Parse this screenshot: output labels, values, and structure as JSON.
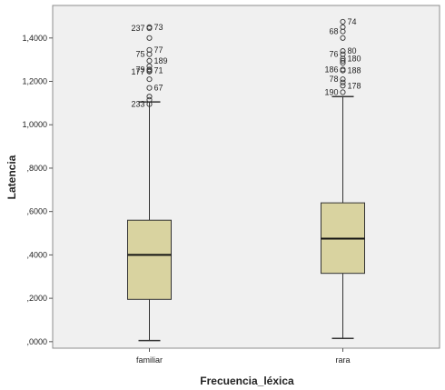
{
  "chart_data": {
    "type": "boxplot",
    "xlabel": "Frecuencia_léxica",
    "ylabel": "Latencia",
    "ylim": [
      -0.03,
      1.55
    ],
    "y_ticks": [
      {
        "value": 0.0,
        "label": ",0000"
      },
      {
        "value": 0.2,
        "label": ",2000"
      },
      {
        "value": 0.4,
        "label": ",4000"
      },
      {
        "value": 0.6,
        "label": ",6000"
      },
      {
        "value": 0.8,
        "label": ",8000"
      },
      {
        "value": 1.0,
        "label": "1,0000"
      },
      {
        "value": 1.2,
        "label": "1,2000"
      },
      {
        "value": 1.4,
        "label": "1,4000"
      }
    ],
    "grid": false,
    "colors": {
      "plot_background": "#f0f0f0",
      "box_fill": "#d9d3a0",
      "box_stroke": "#333333",
      "frame": "#8c8c8c"
    },
    "categories": [
      "familiar",
      "rara"
    ],
    "boxes": [
      {
        "category": "familiar",
        "whisker_low": 0.005,
        "q1": 0.195,
        "median": 0.4,
        "q3": 0.56,
        "whisker_high": 1.105,
        "outliers": [
          {
            "value": 1.45,
            "label": "73"
          },
          {
            "value": 1.445,
            "label": "237"
          },
          {
            "value": 1.4,
            "label": ""
          },
          {
            "value": 1.345,
            "label": "77"
          },
          {
            "value": 1.325,
            "label": "75"
          },
          {
            "value": 1.295,
            "label": "189"
          },
          {
            "value": 1.27,
            "label": ""
          },
          {
            "value": 1.255,
            "label": "79"
          },
          {
            "value": 1.25,
            "label": "71"
          },
          {
            "value": 1.245,
            "label": "177"
          },
          {
            "value": 1.21,
            "label": ""
          },
          {
            "value": 1.17,
            "label": "67"
          },
          {
            "value": 1.13,
            "label": ""
          },
          {
            "value": 1.115,
            "label": ""
          },
          {
            "value": 1.095,
            "label": "233"
          }
        ]
      },
      {
        "category": "rara",
        "whisker_low": 0.015,
        "q1": 0.315,
        "median": 0.475,
        "q3": 0.64,
        "whisker_high": 1.13,
        "outliers": [
          {
            "value": 1.475,
            "label": "74"
          },
          {
            "value": 1.45,
            "label": ""
          },
          {
            "value": 1.43,
            "label": "68"
          },
          {
            "value": 1.4,
            "label": ""
          },
          {
            "value": 1.34,
            "label": "80"
          },
          {
            "value": 1.325,
            "label": "76"
          },
          {
            "value": 1.305,
            "label": "180"
          },
          {
            "value": 1.295,
            "label": ""
          },
          {
            "value": 1.285,
            "label": ""
          },
          {
            "value": 1.255,
            "label": "186"
          },
          {
            "value": 1.25,
            "label": "188"
          },
          {
            "value": 1.21,
            "label": "78"
          },
          {
            "value": 1.195,
            "label": ""
          },
          {
            "value": 1.18,
            "label": "178"
          },
          {
            "value": 1.15,
            "label": "190"
          }
        ]
      }
    ]
  }
}
